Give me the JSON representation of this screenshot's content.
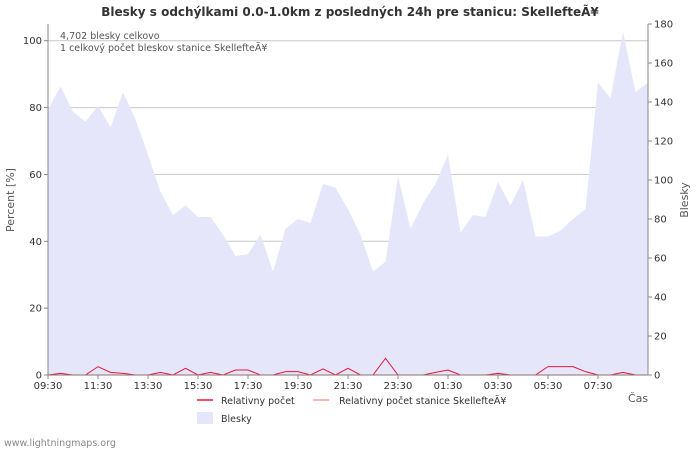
{
  "chart_data": {
    "type": "area",
    "title": "Blesky s odchýlkami 0.0-1.0km z posledných 24h pre stanicu: SkellefteÃ¥",
    "ylabel_left": "Percent   [%]",
    "ylabel_right": "Blesky",
    "xlabel": "Čas",
    "ylim_left": [
      0,
      105
    ],
    "ylim_right": [
      0,
      180
    ],
    "yticks_left": [
      0,
      20,
      40,
      60,
      80,
      100
    ],
    "yticks_right": [
      0,
      20,
      40,
      60,
      80,
      100,
      120,
      140,
      160,
      180
    ],
    "x_tick_labels": [
      "09:30",
      "11:30",
      "13:30",
      "15:30",
      "17:30",
      "19:30",
      "21:30",
      "23:30",
      "01:30",
      "03:30",
      "05:30",
      "07:30"
    ],
    "annotations": [
      "4,702 blesky celkovo",
      "1 celkový počet bleskov stanice SkellefteÃ¥"
    ],
    "series": [
      {
        "name": "Blesky",
        "color": "#e6e6fa",
        "axis": "right",
        "values": [
          136,
          148,
          135,
          130,
          138,
          127,
          145,
          131,
          113,
          94,
          82,
          87,
          81,
          81,
          72,
          61,
          62,
          72,
          53,
          75,
          80,
          78,
          98,
          96,
          85,
          72,
          53,
          58,
          102,
          75,
          88,
          98,
          113,
          73,
          82,
          81,
          99,
          87,
          100,
          71,
          71,
          74,
          80,
          85,
          150,
          142,
          176,
          145,
          150
        ]
      },
      {
        "name": "Relativny počet",
        "color": "#e8163a",
        "axis": "left",
        "values": [
          0,
          0.5,
          0,
          0,
          2.5,
          0.8,
          0.5,
          0,
          0,
          0.8,
          0,
          2,
          0,
          0.8,
          0,
          1.5,
          1.5,
          0,
          0,
          1,
          1,
          0,
          1.8,
          0,
          2,
          0,
          0,
          5,
          0,
          0,
          0,
          0.8,
          1.5,
          0,
          0,
          0,
          0.5,
          0,
          0,
          0,
          2.5,
          2.5,
          2.5,
          1,
          0,
          0,
          0.8,
          0,
          0
        ]
      },
      {
        "name": "Relativny počet stanice SkellefteÃ¥",
        "color": "#ff9999",
        "axis": "left",
        "values": [
          0,
          0,
          0,
          0,
          0,
          0,
          0,
          0,
          0,
          0,
          0,
          0,
          0,
          0,
          0,
          0,
          0,
          0,
          0,
          0,
          0,
          0,
          0,
          0,
          0,
          0,
          0,
          0,
          0,
          0,
          0,
          0,
          0,
          0,
          0,
          0,
          0,
          0,
          0,
          0,
          0,
          0,
          0,
          0,
          0,
          0,
          0,
          0,
          0
        ]
      }
    ]
  },
  "credit": "www.lightningmaps.org"
}
